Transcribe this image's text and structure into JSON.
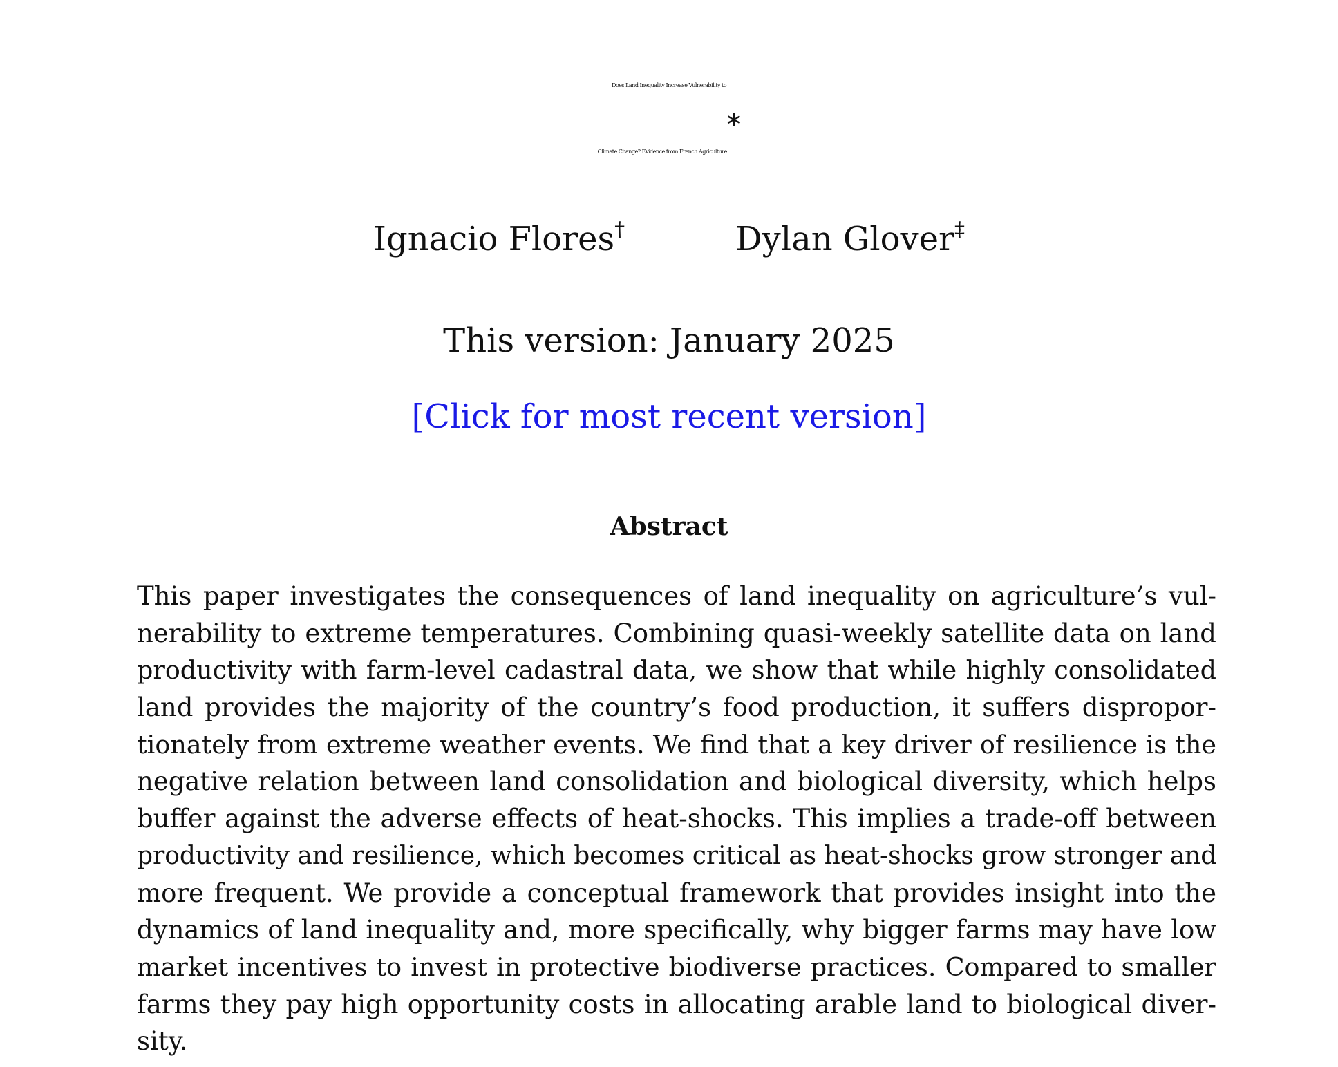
{
  "title": {
    "line1": "Does Land Inequality Increase Vulnerability to",
    "line2": "Climate Change? Evidence from French Agriculture",
    "footnote_mark": "*"
  },
  "authors": [
    {
      "name": "Ignacio Flores",
      "mark": "†"
    },
    {
      "name": "Dylan Glover",
      "mark": "‡"
    }
  ],
  "version": "This version: January 2025",
  "recent_link": {
    "label": "[Click for most recent version]",
    "color": "#1a1ae6"
  },
  "abstract": {
    "heading": "Abstract",
    "lines": [
      "This paper investigates the consequences of land inequality on agriculture’s vul-",
      "nerability to extreme temperatures. Combining quasi-weekly satellite data on land",
      "productivity with farm-level cadastral data, we show that while highly consolidated",
      "land provides the majority of the country’s food production, it suffers dispropor-",
      "tionately from extreme weather events. We find that a key driver of resilience is the",
      "negative relation between land consolidation and biological diversity, which helps",
      "buffer against the adverse effects of heat-shocks. This implies a trade-off between",
      "productivity and resilience, which becomes critical as heat-shocks grow stronger and",
      "more frequent. We provide a conceptual framework that provides insight into the",
      "dynamics of land inequality and, more specifically, why bigger farms may have low",
      "market incentives to invest in protective biodiverse practices. Compared to smaller",
      "farms they pay high opportunity costs in allocating arable land to biological diver-",
      "sity."
    ]
  }
}
